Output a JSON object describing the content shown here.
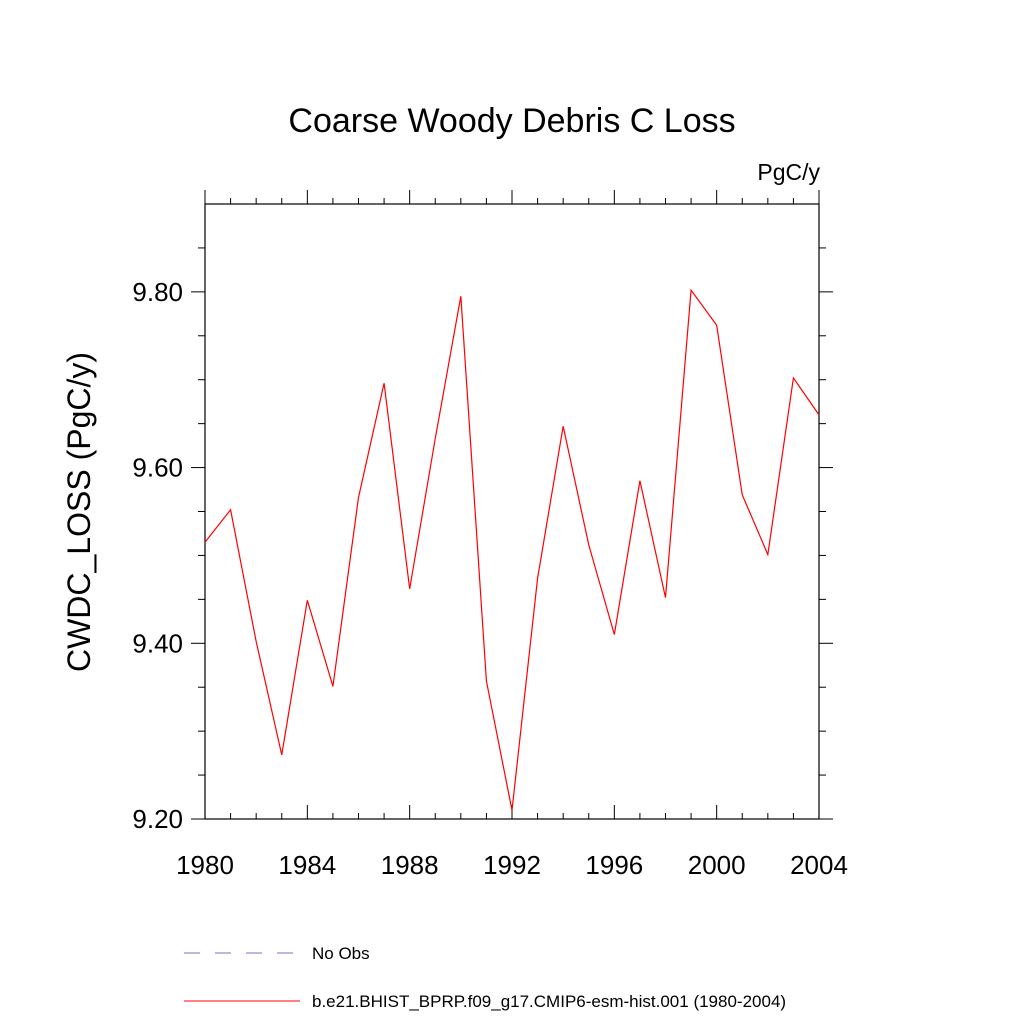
{
  "chart_data": {
    "type": "line",
    "title": "Coarse Woody Debris C Loss",
    "units_label": "PgC/y",
    "xlabel": "",
    "ylabel": "CWDC_LOSS  (PgC/y)",
    "xlim": [
      1980,
      2004
    ],
    "ylim": [
      9.2,
      9.9
    ],
    "x_ticks": [
      "1980",
      "1984",
      "1988",
      "1992",
      "1996",
      "2000",
      "2004"
    ],
    "y_ticks": [
      "9.20",
      "9.40",
      "9.60",
      "9.80"
    ],
    "grid": false,
    "legend_position": "bottom",
    "x": [
      1980,
      1981,
      1982,
      1983,
      1984,
      1985,
      1986,
      1987,
      1988,
      1989,
      1990,
      1991,
      1992,
      1993,
      1994,
      1995,
      1996,
      1997,
      1998,
      1999,
      2000,
      2001,
      2002,
      2003,
      2004
    ],
    "series": [
      {
        "name": "b.e21.BHIST_BPRP.f09_g17.CMIP6-esm-hist.001 (1980-2004)",
        "color": "#ff0000",
        "style": "solid",
        "values": [
          9.515,
          9.552,
          9.402,
          9.273,
          9.449,
          9.351,
          9.566,
          9.696,
          9.462,
          9.633,
          9.795,
          9.357,
          9.21,
          9.474,
          9.647,
          9.512,
          9.41,
          9.585,
          9.452,
          9.802,
          9.762,
          9.569,
          9.501,
          9.702,
          9.66
        ]
      }
    ],
    "legend": [
      {
        "label": "No Obs",
        "color": "#7a6fd0",
        "style": "dashed"
      },
      {
        "label": "b.e21.BHIST_BPRP.f09_g17.CMIP6-esm-hist.001 (1980-2004)",
        "color": "#ff0000",
        "style": "solid"
      }
    ]
  }
}
